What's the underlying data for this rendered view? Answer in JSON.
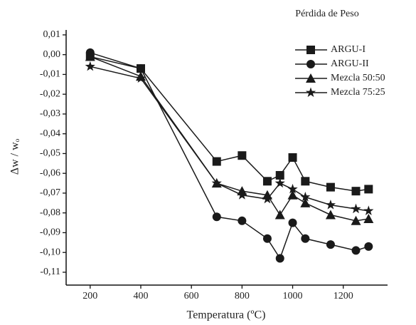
{
  "chart_data": {
    "type": "line",
    "xlabel": "Temperatura (ºC)",
    "ylabel": "Δw / wₒ",
    "legend_title": "Pérdida de Peso",
    "legend": "top-right",
    "x": [
      200,
      400,
      700,
      800,
      900,
      950,
      1000,
      1050,
      1150,
      1250,
      1300
    ],
    "series": [
      {
        "name": "ARGU-I",
        "color": "#1a1a1a",
        "marker": "square",
        "values": [
          -0.001,
          -0.007,
          -0.054,
          -0.051,
          -0.064,
          -0.061,
          -0.052,
          -0.064,
          -0.067,
          -0.069,
          -0.068
        ]
      },
      {
        "name": "ARGU-II",
        "color": "#1a1a1a",
        "marker": "circle",
        "values": [
          0.001,
          -0.007,
          -0.082,
          -0.084,
          -0.093,
          -0.103,
          -0.085,
          -0.093,
          -0.096,
          -0.099,
          -0.097
        ]
      },
      {
        "name": "Mezcla 50:50",
        "color": "#1a1a1a",
        "marker": "triangle",
        "values": [
          -0.001,
          -0.011,
          -0.065,
          -0.069,
          -0.071,
          -0.081,
          -0.071,
          -0.075,
          -0.081,
          -0.084,
          -0.083
        ]
      },
      {
        "name": "Mezcla 75:25",
        "color": "#1a1a1a",
        "marker": "star",
        "values": [
          -0.006,
          -0.012,
          -0.065,
          -0.071,
          -0.073,
          -0.065,
          -0.068,
          -0.072,
          -0.076,
          -0.078,
          -0.079
        ]
      }
    ],
    "xlim": [
      105,
      1375
    ],
    "xticks": [
      200,
      400,
      600,
      800,
      1000,
      1200
    ],
    "ylim": [
      -0.1165,
      0.0125
    ],
    "yticks": [
      {
        "value": 0.01,
        "label": "0,01"
      },
      {
        "value": 0,
        "label": "0,00"
      },
      {
        "value": -0.01,
        "label": "-0,01"
      },
      {
        "value": -0.02,
        "label": "-0,02"
      },
      {
        "value": -0.03,
        "label": "-0,03"
      },
      {
        "value": -0.04,
        "label": "-0,04"
      },
      {
        "value": -0.05,
        "label": "-0,05"
      },
      {
        "value": -0.06,
        "label": "-0,06"
      },
      {
        "value": -0.07,
        "label": "-0,07"
      },
      {
        "value": -0.08,
        "label": "-0,08"
      },
      {
        "value": -0.09,
        "label": "-0,09"
      },
      {
        "value": -0.1,
        "label": "-0,10"
      },
      {
        "value": -0.11,
        "label": "-0,11"
      }
    ],
    "grid": false
  }
}
